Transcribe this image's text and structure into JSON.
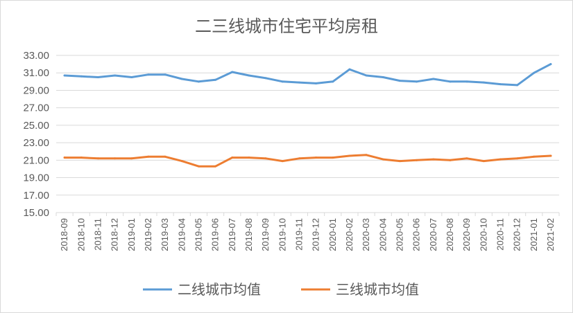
{
  "chart_data": {
    "type": "line",
    "title": "二三线城市住宅平均房租",
    "xlabel": "",
    "ylabel": "",
    "ylim": [
      15,
      33
    ],
    "y_ticks": [
      "15.00",
      "17.00",
      "19.00",
      "21.00",
      "23.00",
      "25.00",
      "27.00",
      "29.00",
      "31.00",
      "33.00"
    ],
    "grid": true,
    "legend_position": "bottom",
    "categories": [
      "2018-09",
      "2018-10",
      "2018-11",
      "2018-12",
      "2019-01",
      "2019-02",
      "2019-03",
      "2019-04",
      "2019-05",
      "2019-06",
      "2019-07",
      "2019-08",
      "2019-09",
      "2019-10",
      "2019-11",
      "2019-12",
      "2020-01",
      "2020-02",
      "2020-03",
      "2020-04",
      "2020-05",
      "2020-06",
      "2020-07",
      "2020-08",
      "2020-09",
      "2020-10",
      "2020-11",
      "2020-12",
      "2021-01",
      "2021-02"
    ],
    "series": [
      {
        "name": "二线城市均值",
        "color": "#5b9bd5",
        "values": [
          30.7,
          30.6,
          30.5,
          30.7,
          30.5,
          30.8,
          30.8,
          30.3,
          30.0,
          30.2,
          31.1,
          30.7,
          30.4,
          30.0,
          29.9,
          29.8,
          30.0,
          31.4,
          30.7,
          30.5,
          30.1,
          30.0,
          30.3,
          30.0,
          30.0,
          29.9,
          29.7,
          29.6,
          31.0,
          32.0
        ]
      },
      {
        "name": "三线城市均值",
        "color": "#ed7d31",
        "values": [
          21.3,
          21.3,
          21.2,
          21.2,
          21.2,
          21.4,
          21.4,
          20.9,
          20.3,
          20.3,
          21.3,
          21.3,
          21.2,
          20.9,
          21.2,
          21.3,
          21.3,
          21.5,
          21.6,
          21.1,
          20.9,
          21.0,
          21.1,
          21.0,
          21.2,
          20.9,
          21.1,
          21.2,
          21.4,
          21.5
        ]
      }
    ]
  }
}
